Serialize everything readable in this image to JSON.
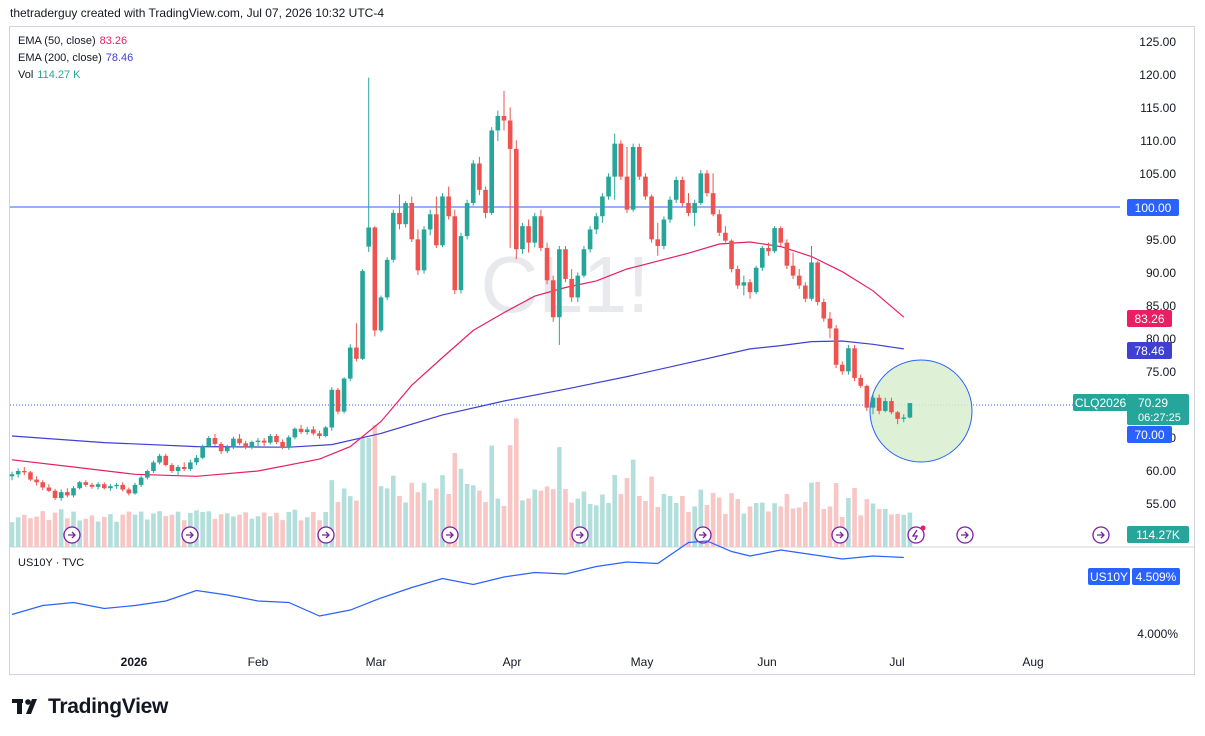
{
  "header": {
    "text": "thetraderguy created with TradingView.com, Jul 07, 2026 10:32 UTC-4"
  },
  "brand": {
    "name": "TradingView"
  },
  "legend": [
    {
      "label": "EMA (50, close)",
      "value": "83.26",
      "color": "#e91e63"
    },
    {
      "label": "EMA (200, close)",
      "value": "78.46",
      "color": "#3f3fd4"
    },
    {
      "label": "Vol",
      "value": "114.27 K",
      "color": "#26a69a"
    }
  ],
  "watermark": "CL1!",
  "price_axis": {
    "ticks": [
      "125.00",
      "120.00",
      "115.00",
      "110.00",
      "105.00",
      "100.00",
      "95.00",
      "90.00",
      "85.00",
      "80.00",
      "75.00",
      "70.00",
      "65.00",
      "60.00",
      "55.00"
    ],
    "tick_values": [
      125,
      120,
      115,
      110,
      105,
      100,
      95,
      90,
      85,
      80,
      75,
      70,
      65,
      60,
      55
    ],
    "badges": {
      "hline": "100.00",
      "ema50": "83.26",
      "ema200": "78.46",
      "symbol": "CLQ2026",
      "last_price": "70.29",
      "countdown": "06:27:25",
      "level": "70.00",
      "volume": "114.27K"
    }
  },
  "time_axis": {
    "labels": [
      "2026",
      "Feb",
      "Mar",
      "Apr",
      "May",
      "Jun",
      "Jul",
      "Aug"
    ]
  },
  "horizontal_lines": [
    100.0,
    70.0
  ],
  "sub_pane": {
    "title": "US10Y · TVC",
    "badge_symbol": "US10Y",
    "badge_value": "4.509%",
    "ticks": [
      "4.000%"
    ]
  },
  "colors": {
    "up": "#26a69a",
    "down": "#ef5350",
    "ema50": "#e91e63",
    "ema200": "#3f3fd4",
    "hline": "#2962ff",
    "us10y": "#2962ff",
    "circle_fill": "#d8edcf",
    "circle_stroke": "#2962ff"
  },
  "chart_data": {
    "type": "candlestick",
    "title": "CL1!",
    "ylim": [
      52,
      127
    ],
    "candles": [
      [
        59.2,
        59.9,
        58.6,
        59.5
      ],
      [
        59.5,
        60.4,
        59.0,
        60.0
      ],
      [
        60.0,
        60.6,
        59.4,
        59.8
      ],
      [
        59.8,
        60.0,
        58.5,
        58.7
      ],
      [
        58.7,
        59.2,
        57.8,
        58.3
      ],
      [
        58.3,
        58.6,
        57.1,
        57.5
      ],
      [
        57.5,
        58.0,
        56.8,
        57.0
      ],
      [
        57.0,
        57.3,
        55.6,
        55.9
      ],
      [
        55.9,
        57.2,
        55.5,
        56.8
      ],
      [
        56.8,
        57.4,
        56.0,
        56.3
      ],
      [
        56.3,
        57.7,
        56.0,
        57.4
      ],
      [
        57.4,
        58.5,
        57.2,
        58.3
      ],
      [
        58.3,
        58.6,
        57.6,
        57.9
      ],
      [
        57.9,
        58.2,
        57.3,
        57.6
      ],
      [
        57.6,
        58.3,
        57.2,
        58.0
      ],
      [
        58.0,
        58.3,
        57.2,
        57.4
      ],
      [
        57.4,
        58.0,
        57.0,
        57.7
      ],
      [
        57.7,
        58.2,
        57.3,
        57.9
      ],
      [
        57.9,
        58.3,
        56.9,
        57.2
      ],
      [
        57.2,
        57.5,
        56.3,
        56.6
      ],
      [
        56.6,
        58.2,
        56.4,
        57.9
      ],
      [
        57.9,
        59.3,
        57.6,
        59.0
      ],
      [
        59.0,
        60.2,
        58.7,
        60.0
      ],
      [
        60.0,
        61.6,
        59.7,
        61.3
      ],
      [
        61.3,
        62.6,
        61.0,
        62.3
      ],
      [
        62.3,
        62.6,
        60.7,
        60.9
      ],
      [
        60.9,
        61.2,
        59.7,
        60.0
      ],
      [
        60.0,
        60.9,
        59.4,
        60.6
      ],
      [
        60.6,
        61.3,
        60.0,
        60.3
      ],
      [
        60.3,
        61.7,
        60.0,
        61.3
      ],
      [
        61.3,
        62.4,
        60.9,
        62.0
      ],
      [
        62.0,
        64.0,
        61.8,
        63.8
      ],
      [
        63.8,
        65.3,
        63.6,
        65.0
      ],
      [
        65.0,
        65.6,
        63.8,
        64.1
      ],
      [
        64.1,
        64.4,
        62.6,
        63.0
      ],
      [
        63.0,
        64.0,
        62.7,
        63.6
      ],
      [
        63.6,
        65.2,
        63.3,
        64.9
      ],
      [
        64.9,
        65.6,
        63.9,
        64.2
      ],
      [
        64.2,
        64.6,
        63.3,
        63.6
      ],
      [
        63.6,
        64.6,
        63.3,
        64.4
      ],
      [
        64.4,
        65.0,
        63.6,
        64.6
      ],
      [
        64.6,
        65.0,
        63.8,
        64.3
      ],
      [
        64.3,
        65.6,
        64.0,
        65.3
      ],
      [
        65.3,
        65.6,
        64.1,
        64.4
      ],
      [
        64.4,
        64.8,
        63.3,
        63.6
      ],
      [
        63.6,
        65.4,
        63.2,
        65.1
      ],
      [
        65.1,
        66.6,
        64.8,
        66.4
      ],
      [
        66.4,
        67.0,
        65.6,
        65.9
      ],
      [
        65.9,
        66.7,
        65.5,
        66.3
      ],
      [
        66.3,
        66.8,
        65.4,
        65.7
      ],
      [
        65.7,
        66.1,
        64.9,
        65.3
      ],
      [
        65.3,
        66.8,
        65.1,
        66.6
      ],
      [
        66.6,
        72.7,
        66.1,
        72.3
      ],
      [
        72.3,
        72.6,
        68.6,
        69.0
      ],
      [
        69.0,
        74.2,
        68.7,
        74.0
      ],
      [
        74.0,
        79.2,
        73.6,
        78.7
      ],
      [
        78.7,
        82.4,
        76.6,
        77.0
      ],
      [
        77.0,
        90.6,
        76.8,
        90.3
      ],
      [
        94.0,
        119.6,
        93.2,
        96.9
      ],
      [
        96.9,
        97.1,
        80.4,
        81.3
      ],
      [
        81.3,
        86.6,
        81.0,
        86.3
      ],
      [
        86.3,
        92.4,
        85.9,
        92.0
      ],
      [
        92.0,
        99.6,
        91.6,
        99.1
      ],
      [
        99.1,
        101.9,
        96.6,
        97.4
      ],
      [
        97.4,
        100.9,
        96.9,
        100.6
      ],
      [
        100.6,
        101.6,
        94.7,
        95.1
      ],
      [
        95.1,
        96.6,
        89.7,
        90.4
      ],
      [
        90.4,
        97.1,
        89.9,
        96.6
      ],
      [
        96.6,
        99.6,
        95.7,
        98.9
      ],
      [
        98.9,
        101.6,
        93.8,
        94.2
      ],
      [
        94.2,
        102.1,
        93.9,
        101.6
      ],
      [
        101.6,
        103.1,
        98.1,
        98.6
      ],
      [
        98.6,
        99.6,
        86.8,
        87.4
      ],
      [
        87.4,
        96.1,
        86.9,
        95.6
      ],
      [
        95.6,
        101.1,
        95.1,
        100.6
      ],
      [
        100.6,
        107.1,
        100.2,
        106.6
      ],
      [
        106.6,
        107.6,
        101.8,
        102.6
      ],
      [
        102.6,
        103.1,
        98.3,
        99.1
      ],
      [
        99.1,
        112.1,
        98.8,
        111.6
      ],
      [
        111.6,
        114.6,
        110.0,
        113.8
      ],
      [
        113.8,
        117.6,
        111.6,
        113.1
      ],
      [
        113.1,
        115.1,
        93.8,
        108.8
      ],
      [
        108.8,
        110.1,
        92.1,
        93.6
      ],
      [
        93.6,
        97.6,
        92.9,
        97.1
      ],
      [
        97.1,
        98.1,
        93.1,
        94.6
      ],
      [
        94.6,
        99.1,
        93.9,
        98.6
      ],
      [
        98.6,
        99.6,
        93.3,
        93.8
      ],
      [
        93.8,
        94.6,
        88.3,
        88.9
      ],
      [
        88.9,
        89.6,
        82.6,
        83.3
      ],
      [
        83.3,
        94.1,
        79.1,
        93.6
      ],
      [
        93.6,
        94.1,
        88.6,
        89.1
      ],
      [
        89.1,
        90.6,
        85.6,
        86.3
      ],
      [
        86.3,
        90.1,
        85.6,
        89.6
      ],
      [
        89.6,
        94.1,
        89.3,
        93.6
      ],
      [
        93.6,
        97.1,
        93.1,
        96.6
      ],
      [
        96.6,
        99.1,
        95.9,
        98.6
      ],
      [
        98.6,
        102.1,
        97.6,
        101.6
      ],
      [
        101.6,
        105.1,
        101.1,
        104.6
      ],
      [
        104.6,
        111.1,
        101.1,
        109.6
      ],
      [
        109.6,
        110.1,
        104.1,
        104.6
      ],
      [
        104.6,
        109.1,
        99.1,
        99.6
      ],
      [
        99.6,
        109.6,
        99.3,
        109.1
      ],
      [
        109.1,
        109.6,
        104.1,
        104.6
      ],
      [
        104.6,
        105.1,
        101.1,
        101.6
      ],
      [
        101.6,
        101.9,
        94.6,
        95.1
      ],
      [
        95.1,
        97.6,
        92.6,
        94.1
      ],
      [
        94.1,
        98.6,
        93.6,
        98.1
      ],
      [
        98.1,
        101.6,
        97.6,
        101.1
      ],
      [
        101.1,
        104.6,
        100.6,
        104.1
      ],
      [
        104.1,
        104.6,
        100.1,
        100.6
      ],
      [
        100.6,
        102.1,
        98.6,
        99.1
      ],
      [
        99.1,
        101.1,
        97.1,
        100.6
      ],
      [
        100.6,
        105.6,
        100.3,
        105.1
      ],
      [
        105.1,
        105.6,
        101.6,
        102.1
      ],
      [
        102.1,
        105.1,
        98.6,
        98.9
      ],
      [
        98.9,
        99.6,
        95.6,
        96.1
      ],
      [
        96.1,
        97.1,
        94.6,
        94.9
      ],
      [
        94.9,
        95.1,
        90.1,
        90.6
      ],
      [
        90.6,
        91.1,
        87.6,
        88.1
      ],
      [
        88.1,
        89.6,
        86.6,
        88.6
      ],
      [
        88.6,
        89.1,
        86.1,
        87.1
      ],
      [
        87.1,
        91.1,
        86.8,
        90.8
      ],
      [
        90.8,
        94.1,
        90.3,
        93.8
      ],
      [
        93.8,
        94.6,
        92.6,
        93.3
      ],
      [
        93.3,
        97.1,
        93.0,
        96.8
      ],
      [
        96.8,
        97.1,
        94.1,
        94.6
      ],
      [
        94.6,
        95.1,
        90.6,
        91.1
      ],
      [
        91.1,
        93.1,
        89.1,
        89.6
      ],
      [
        89.6,
        90.6,
        87.6,
        88.1
      ],
      [
        88.1,
        88.6,
        85.6,
        86.1
      ],
      [
        86.1,
        94.1,
        85.8,
        91.6
      ],
      [
        91.6,
        91.8,
        85.1,
        85.6
      ],
      [
        85.6,
        86.1,
        82.6,
        83.1
      ],
      [
        83.1,
        84.1,
        80.1,
        81.6
      ],
      [
        81.6,
        82.1,
        75.6,
        76.1
      ],
      [
        76.1,
        76.6,
        74.6,
        75.1
      ],
      [
        75.1,
        79.1,
        74.6,
        78.6
      ],
      [
        78.6,
        79.1,
        73.6,
        74.1
      ],
      [
        74.1,
        74.6,
        72.6,
        72.9
      ],
      [
        72.9,
        73.1,
        69.1,
        69.6
      ],
      [
        69.6,
        71.6,
        68.6,
        71.1
      ],
      [
        71.1,
        71.6,
        68.6,
        69.1
      ],
      [
        69.1,
        71.1,
        68.9,
        70.6
      ],
      [
        70.6,
        71.1,
        68.6,
        68.9
      ],
      [
        68.9,
        69.1,
        67.1,
        67.9
      ],
      [
        67.9,
        68.6,
        67.4,
        68.1
      ],
      [
        68.1,
        70.3,
        68.0,
        70.29
      ]
    ],
    "ema50": [
      [
        0,
        61.7
      ],
      [
        10,
        60.6
      ],
      [
        20,
        59.5
      ],
      [
        30,
        59.2
      ],
      [
        40,
        60.0
      ],
      [
        50,
        61.8
      ],
      [
        55,
        63.7
      ],
      [
        60,
        67.5
      ],
      [
        65,
        73.0
      ],
      [
        70,
        77.2
      ],
      [
        75,
        81.3
      ],
      [
        80,
        84.0
      ],
      [
        85,
        86.5
      ],
      [
        90,
        87.8
      ],
      [
        95,
        88.8
      ],
      [
        100,
        90.6
      ],
      [
        105,
        91.8
      ],
      [
        110,
        93.0
      ],
      [
        115,
        94.4
      ],
      [
        120,
        94.7
      ],
      [
        125,
        94.0
      ],
      [
        130,
        92.5
      ],
      [
        135,
        90.2
      ],
      [
        140,
        87.3
      ],
      [
        145,
        83.3
      ]
    ],
    "ema200": [
      [
        0,
        65.3
      ],
      [
        15,
        64.3
      ],
      [
        30,
        63.7
      ],
      [
        45,
        63.6
      ],
      [
        52,
        64.0
      ],
      [
        60,
        65.7
      ],
      [
        70,
        68.5
      ],
      [
        80,
        70.6
      ],
      [
        90,
        72.4
      ],
      [
        100,
        74.3
      ],
      [
        110,
        76.4
      ],
      [
        120,
        78.5
      ],
      [
        125,
        79.0
      ],
      [
        130,
        79.6
      ],
      [
        135,
        79.7
      ],
      [
        140,
        79.2
      ],
      [
        145,
        78.5
      ]
    ],
    "us10y": [
      [
        0,
        4.13
      ],
      [
        5,
        4.19
      ],
      [
        10,
        4.21
      ],
      [
        15,
        4.17
      ],
      [
        20,
        4.19
      ],
      [
        25,
        4.22
      ],
      [
        30,
        4.29
      ],
      [
        35,
        4.26
      ],
      [
        40,
        4.22
      ],
      [
        45,
        4.21
      ],
      [
        50,
        4.12
      ],
      [
        55,
        4.16
      ],
      [
        60,
        4.24
      ],
      [
        65,
        4.31
      ],
      [
        70,
        4.37
      ],
      [
        75,
        4.33
      ],
      [
        80,
        4.38
      ],
      [
        85,
        4.41
      ],
      [
        90,
        4.4
      ],
      [
        95,
        4.45
      ],
      [
        100,
        4.48
      ],
      [
        105,
        4.47
      ],
      [
        110,
        4.61
      ],
      [
        113,
        4.62
      ],
      [
        117,
        4.55
      ],
      [
        120,
        4.52
      ],
      [
        125,
        4.56
      ],
      [
        130,
        4.53
      ],
      [
        135,
        4.5
      ],
      [
        140,
        4.52
      ],
      [
        145,
        4.51
      ]
    ]
  }
}
